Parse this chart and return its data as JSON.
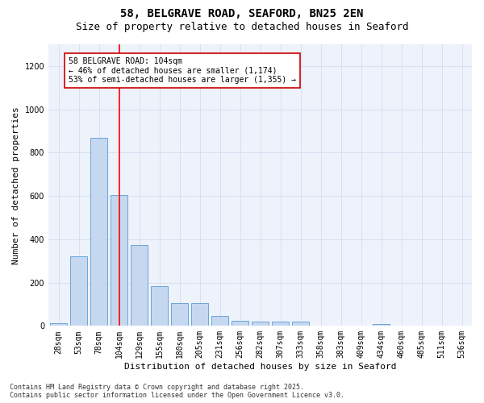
{
  "title_line1": "58, BELGRAVE ROAD, SEAFORD, BN25 2EN",
  "title_line2": "Size of property relative to detached houses in Seaford",
  "xlabel": "Distribution of detached houses by size in Seaford",
  "ylabel": "Number of detached properties",
  "categories": [
    "28sqm",
    "53sqm",
    "78sqm",
    "104sqm",
    "129sqm",
    "155sqm",
    "180sqm",
    "205sqm",
    "231sqm",
    "256sqm",
    "282sqm",
    "307sqm",
    "333sqm",
    "358sqm",
    "383sqm",
    "409sqm",
    "434sqm",
    "460sqm",
    "485sqm",
    "511sqm",
    "536sqm"
  ],
  "values": [
    12,
    320,
    870,
    605,
    375,
    182,
    105,
    105,
    45,
    22,
    18,
    18,
    20,
    0,
    0,
    0,
    10,
    0,
    0,
    0,
    0
  ],
  "bar_color": "#c5d8f0",
  "bar_edge_color": "#5b9bd5",
  "red_line_index": 3,
  "annotation_text": "58 BELGRAVE ROAD: 104sqm\n← 46% of detached houses are smaller (1,174)\n53% of semi-detached houses are larger (1,355) →",
  "annotation_box_color": "#ffffff",
  "annotation_box_edge": "#cc0000",
  "ylim": [
    0,
    1300
  ],
  "yticks": [
    0,
    200,
    400,
    600,
    800,
    1000,
    1200
  ],
  "grid_color": "#d8e0f0",
  "background_color": "#eef2fb",
  "footer_line1": "Contains HM Land Registry data © Crown copyright and database right 2025.",
  "footer_line2": "Contains public sector information licensed under the Open Government Licence v3.0.",
  "title_fontsize": 10,
  "subtitle_fontsize": 9,
  "axis_label_fontsize": 8,
  "tick_fontsize": 7,
  "annotation_fontsize": 7,
  "footer_fontsize": 6
}
